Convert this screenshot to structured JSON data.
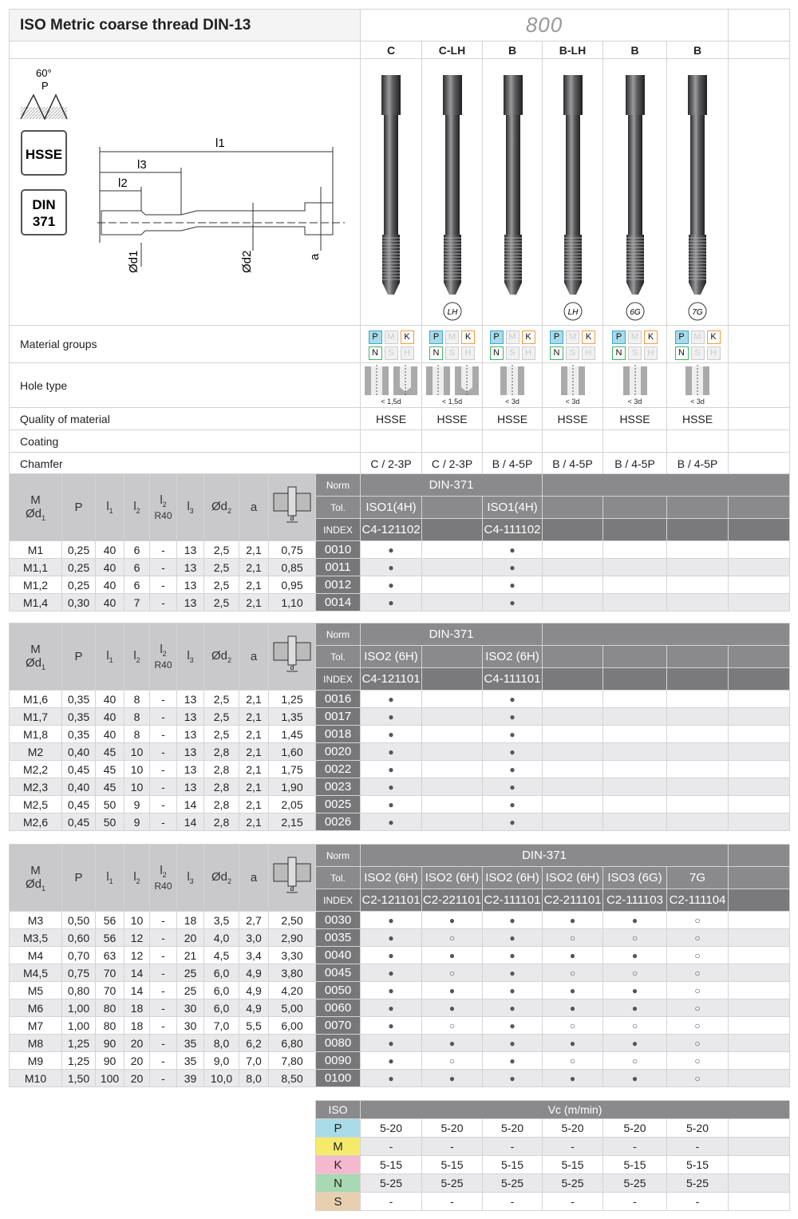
{
  "title": "ISO Metric coarse thread DIN-13",
  "series": "800",
  "drawing": {
    "angle": "60°",
    "pitch": "P",
    "material_badge": "HSSE",
    "norm_badge_line1": "DIN",
    "norm_badge_line2": "371",
    "l1": "l1",
    "l3": "l3",
    "l2": "l2",
    "d1": "Ød1",
    "d2": "Ød2",
    "a": "a"
  },
  "columns": [
    {
      "type": "C",
      "marker": "",
      "material": "PMKNSH",
      "hole": "< 1,5d",
      "hole_kind": "through+blind",
      "quality": "HSSE",
      "coating": "",
      "chamfer": "C / 2-3P"
    },
    {
      "type": "C-LH",
      "marker": "LH",
      "material": "PMKNSH",
      "hole": "< 1,5d",
      "hole_kind": "through+blind",
      "quality": "HSSE",
      "coating": "",
      "chamfer": "C / 2-3P"
    },
    {
      "type": "B",
      "marker": "",
      "material": "PMKNSH",
      "hole": "< 3d",
      "hole_kind": "through",
      "quality": "HSSE",
      "coating": "",
      "chamfer": "B / 4-5P"
    },
    {
      "type": "B-LH",
      "marker": "LH",
      "material": "PMKNSH",
      "hole": "< 3d",
      "hole_kind": "through",
      "quality": "HSSE",
      "coating": "",
      "chamfer": "B / 4-5P"
    },
    {
      "type": "B",
      "marker": "6G",
      "material": "PMKNSH",
      "hole": "< 3d",
      "hole_kind": "through",
      "quality": "HSSE",
      "coating": "",
      "chamfer": "B / 4-5P"
    },
    {
      "type": "B",
      "marker": "7G",
      "material": "PMKNSH",
      "hole": "< 3d",
      "hole_kind": "through",
      "quality": "HSSE",
      "coating": "",
      "chamfer": "B / 4-5P"
    }
  ],
  "spec_labels": {
    "material": "Material groups",
    "hole": "Hole type",
    "quality": "Quality of material",
    "coating": "Coating",
    "chamfer": "Chamfer"
  },
  "col_headers": {
    "m": "M",
    "d1": "Ød",
    "d1sub": "1",
    "p": "P",
    "l": "l",
    "s1": "1",
    "s2": "2",
    "s3": "3",
    "r40": "R40",
    "d2": "Ød",
    "d2sub": "2",
    "a": "a",
    "drill_d": "d",
    "norm": "Norm",
    "tol": "Tol.",
    "index": "INDEX"
  },
  "tables": [
    {
      "norm": "DIN-371",
      "tol": [
        "ISO1(4H)",
        "",
        "ISO1(4H)",
        "",
        "",
        "",
        ""
      ],
      "index": [
        "C4-121102",
        "",
        "C4-111102",
        "",
        "",
        "",
        ""
      ],
      "rows": [
        [
          "M1",
          "0,25",
          "40",
          "6",
          "-",
          "13",
          "2,5",
          "2,1",
          "0,75",
          "0010",
          "●",
          "",
          "●",
          "",
          "",
          "",
          ""
        ],
        [
          "M1,1",
          "0,25",
          "40",
          "6",
          "-",
          "13",
          "2,5",
          "2,1",
          "0,85",
          "0011",
          "●",
          "",
          "●",
          "",
          "",
          "",
          ""
        ],
        [
          "M1,2",
          "0,25",
          "40",
          "6",
          "-",
          "13",
          "2,5",
          "2,1",
          "0,95",
          "0012",
          "●",
          "",
          "●",
          "",
          "",
          "",
          ""
        ],
        [
          "M1,4",
          "0,30",
          "40",
          "7",
          "-",
          "13",
          "2,5",
          "2,1",
          "1,10",
          "0014",
          "●",
          "",
          "●",
          "",
          "",
          "",
          ""
        ]
      ]
    },
    {
      "norm": "DIN-371",
      "tol": [
        "ISO2 (6H)",
        "",
        "ISO2 (6H)",
        "",
        "",
        "",
        ""
      ],
      "index": [
        "C4-121101",
        "",
        "C4-111101",
        "",
        "",
        "",
        ""
      ],
      "rows": [
        [
          "M1,6",
          "0,35",
          "40",
          "8",
          "-",
          "13",
          "2,5",
          "2,1",
          "1,25",
          "0016",
          "●",
          "",
          "●",
          "",
          "",
          "",
          ""
        ],
        [
          "M1,7",
          "0,35",
          "40",
          "8",
          "-",
          "13",
          "2,5",
          "2,1",
          "1,35",
          "0017",
          "●",
          "",
          "●",
          "",
          "",
          "",
          ""
        ],
        [
          "M1,8",
          "0,35",
          "40",
          "8",
          "-",
          "13",
          "2,5",
          "2,1",
          "1,45",
          "0018",
          "●",
          "",
          "●",
          "",
          "",
          "",
          ""
        ],
        [
          "M2",
          "0,40",
          "45",
          "10",
          "-",
          "13",
          "2,8",
          "2,1",
          "1,60",
          "0020",
          "●",
          "",
          "●",
          "",
          "",
          "",
          ""
        ],
        [
          "M2,2",
          "0,45",
          "45",
          "10",
          "-",
          "13",
          "2,8",
          "2,1",
          "1,75",
          "0022",
          "●",
          "",
          "●",
          "",
          "",
          "",
          ""
        ],
        [
          "M2,3",
          "0,40",
          "45",
          "10",
          "-",
          "13",
          "2,8",
          "2,1",
          "1,90",
          "0023",
          "●",
          "",
          "●",
          "",
          "",
          "",
          ""
        ],
        [
          "M2,5",
          "0,45",
          "50",
          "9",
          "-",
          "14",
          "2,8",
          "2,1",
          "2,05",
          "0025",
          "●",
          "",
          "●",
          "",
          "",
          "",
          ""
        ],
        [
          "M2,6",
          "0,45",
          "50",
          "9",
          "-",
          "14",
          "2,8",
          "2,1",
          "2,15",
          "0026",
          "●",
          "",
          "●",
          "",
          "",
          "",
          ""
        ]
      ]
    },
    {
      "norm": "DIN-371",
      "tol": [
        "ISO2 (6H)",
        "ISO2 (6H)",
        "ISO2 (6H)",
        "ISO2 (6H)",
        "ISO3 (6G)",
        "7G",
        ""
      ],
      "index": [
        "C2-121101",
        "C2-221101",
        "C2-111101",
        "C2-211101",
        "C2-111103",
        "C2-111104",
        ""
      ],
      "rows": [
        [
          "M3",
          "0,50",
          "56",
          "10",
          "-",
          "18",
          "3,5",
          "2,7",
          "2,50",
          "0030",
          "●",
          "●",
          "●",
          "●",
          "●",
          "○",
          ""
        ],
        [
          "M3,5",
          "0,60",
          "56",
          "12",
          "-",
          "20",
          "4,0",
          "3,0",
          "2,90",
          "0035",
          "●",
          "○",
          "●",
          "○",
          "○",
          "○",
          ""
        ],
        [
          "M4",
          "0,70",
          "63",
          "12",
          "-",
          "21",
          "4,5",
          "3,4",
          "3,30",
          "0040",
          "●",
          "●",
          "●",
          "●",
          "●",
          "○",
          ""
        ],
        [
          "M4,5",
          "0,75",
          "70",
          "14",
          "-",
          "25",
          "6,0",
          "4,9",
          "3,80",
          "0045",
          "●",
          "○",
          "●",
          "○",
          "○",
          "○",
          ""
        ],
        [
          "M5",
          "0,80",
          "70",
          "14",
          "-",
          "25",
          "6,0",
          "4,9",
          "4,20",
          "0050",
          "●",
          "●",
          "●",
          "●",
          "●",
          "○",
          ""
        ],
        [
          "M6",
          "1,00",
          "80",
          "18",
          "-",
          "30",
          "6,0",
          "4,9",
          "5,00",
          "0060",
          "●",
          "●",
          "●",
          "●",
          "●",
          "○",
          ""
        ],
        [
          "M7",
          "1,00",
          "80",
          "18",
          "-",
          "30",
          "7,0",
          "5,5",
          "6,00",
          "0070",
          "●",
          "○",
          "●",
          "○",
          "○",
          "○",
          ""
        ],
        [
          "M8",
          "1,25",
          "90",
          "20",
          "-",
          "35",
          "8,0",
          "6,2",
          "6,80",
          "0080",
          "●",
          "●",
          "●",
          "●",
          "●",
          "○",
          ""
        ],
        [
          "M9",
          "1,25",
          "90",
          "20",
          "-",
          "35",
          "9,0",
          "7,0",
          "7,80",
          "0090",
          "●",
          "○",
          "●",
          "○",
          "○",
          "○",
          ""
        ],
        [
          "M10",
          "1,50",
          "100",
          "20",
          "-",
          "39",
          "10,0",
          "8,0",
          "8,50",
          "0100",
          "●",
          "●",
          "●",
          "●",
          "●",
          "○",
          ""
        ]
      ]
    }
  ],
  "speeds": {
    "iso": "ISO",
    "vc": "Vc (m/min)",
    "rows": [
      {
        "group": "P",
        "color": "#a9dbe8",
        "values": [
          "5-20",
          "5-20",
          "5-20",
          "5-20",
          "5-20",
          "5-20"
        ]
      },
      {
        "group": "M",
        "color": "#f6ea6b",
        "values": [
          "-",
          "-",
          "-",
          "-",
          "-",
          "-"
        ]
      },
      {
        "group": "K",
        "color": "#f4b8cf",
        "values": [
          "5-15",
          "5-15",
          "5-15",
          "5-15",
          "5-15",
          "5-15"
        ]
      },
      {
        "group": "N",
        "color": "#a8d9b2",
        "values": [
          "5-25",
          "5-25",
          "5-25",
          "5-25",
          "5-25",
          "5-25"
        ]
      },
      {
        "group": "S",
        "color": "#e8cfb0",
        "values": [
          "-",
          "-",
          "-",
          "-",
          "-",
          "-"
        ]
      }
    ]
  }
}
